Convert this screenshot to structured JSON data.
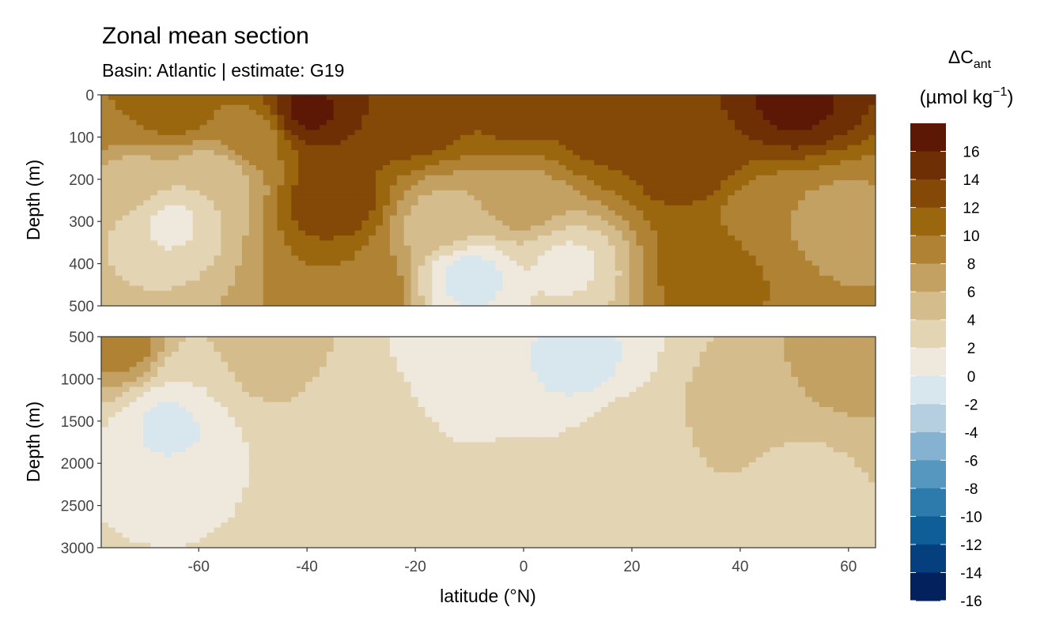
{
  "chart_data": {
    "type": "heatmap",
    "title": "Zonal mean section",
    "subtitle": "Basin: Atlantic | estimate: G19",
    "xlabel": "latitude (°N)",
    "ylabel_top": "Depth (m)",
    "ylabel_bottom": "Depth (m)",
    "xlim": [
      -78,
      65
    ],
    "xticks": [
      "-60",
      "-40",
      "-20",
      "0",
      "20",
      "40",
      "60"
    ],
    "xtick_values": [
      -60,
      -40,
      -20,
      0,
      20,
      40,
      60
    ],
    "panels": [
      {
        "name": "upper",
        "ylim": [
          0,
          500
        ],
        "yticks": [
          "0",
          "100",
          "200",
          "300",
          "400",
          "500"
        ],
        "ytick_values": [
          0,
          100,
          200,
          300,
          400,
          500
        ]
      },
      {
        "name": "lower",
        "ylim": [
          500,
          3000
        ],
        "yticks": [
          "500",
          "1000",
          "1500",
          "2000",
          "2500",
          "3000"
        ],
        "ytick_values": [
          500,
          1000,
          1500,
          2000,
          2500,
          3000
        ]
      }
    ],
    "legend": {
      "title_main": "ΔC",
      "title_sub": "ant",
      "unit_main": "(µmol kg",
      "unit_sup": "−1",
      "unit_close": ")",
      "placement": "right",
      "labels": [
        "16",
        "14",
        "12",
        "10",
        "8",
        "6",
        "4",
        "2",
        "0",
        "-2",
        "-4",
        "-6",
        "-8",
        "-10",
        "-12",
        "-14",
        "-16"
      ],
      "colors": [
        "#5c1804",
        "#6e2f05",
        "#844807",
        "#9a670f",
        "#b08233",
        "#c3a163",
        "#d4bc8c",
        "#e3d4b4",
        "#eee8dd",
        "#d8e6ee",
        "#b5cfe1",
        "#85b2d0",
        "#5597bf",
        "#2d7aad",
        "#0f5e98",
        "#063f7d",
        "#02215d"
      ]
    },
    "field_control_points": {
      "upper": [
        {
          "lat": -74,
          "depth": 50,
          "value": 10
        },
        {
          "lat": -72,
          "depth": 200,
          "value": 5
        },
        {
          "lat": -65,
          "depth": 20,
          "value": 12
        },
        {
          "lat": -65,
          "depth": 300,
          "value": 1.5
        },
        {
          "lat": -57,
          "depth": 200,
          "value": 4
        },
        {
          "lat": -50,
          "depth": 100,
          "value": 9
        },
        {
          "lat": -40,
          "depth": 40,
          "value": 16.5
        },
        {
          "lat": -35,
          "depth": 250,
          "value": 14
        },
        {
          "lat": -30,
          "depth": 450,
          "value": 10
        },
        {
          "lat": -20,
          "depth": 50,
          "value": 14
        },
        {
          "lat": -15,
          "depth": 300,
          "value": 5
        },
        {
          "lat": -10,
          "depth": 430,
          "value": -1
        },
        {
          "lat": 0,
          "depth": 40,
          "value": 13
        },
        {
          "lat": 0,
          "depth": 250,
          "value": 7
        },
        {
          "lat": 8,
          "depth": 400,
          "value": 1.5
        },
        {
          "lat": 15,
          "depth": 80,
          "value": 13
        },
        {
          "lat": 30,
          "depth": 150,
          "value": 14
        },
        {
          "lat": 35,
          "depth": 400,
          "value": 12
        },
        {
          "lat": 45,
          "depth": 300,
          "value": 8
        },
        {
          "lat": 50,
          "depth": 20,
          "value": 16.5
        },
        {
          "lat": 58,
          "depth": 300,
          "value": 7
        },
        {
          "lat": 62,
          "depth": 400,
          "value": 8
        }
      ],
      "lower": [
        {
          "lat": -74,
          "depth": 600,
          "value": 9
        },
        {
          "lat": -65,
          "depth": 1500,
          "value": -0.5
        },
        {
          "lat": -60,
          "depth": 1000,
          "value": 2
        },
        {
          "lat": -50,
          "depth": 700,
          "value": 6
        },
        {
          "lat": -40,
          "depth": 2500,
          "value": 2
        },
        {
          "lat": -30,
          "depth": 1500,
          "value": 3
        },
        {
          "lat": -10,
          "depth": 800,
          "value": 0.5
        },
        {
          "lat": 0,
          "depth": 2500,
          "value": 3
        },
        {
          "lat": 10,
          "depth": 800,
          "value": -0.5
        },
        {
          "lat": 20,
          "depth": 1700,
          "value": 3
        },
        {
          "lat": 40,
          "depth": 1400,
          "value": 5
        },
        {
          "lat": 50,
          "depth": 2200,
          "value": 3.5
        },
        {
          "lat": 60,
          "depth": 800,
          "value": 7
        }
      ]
    }
  }
}
